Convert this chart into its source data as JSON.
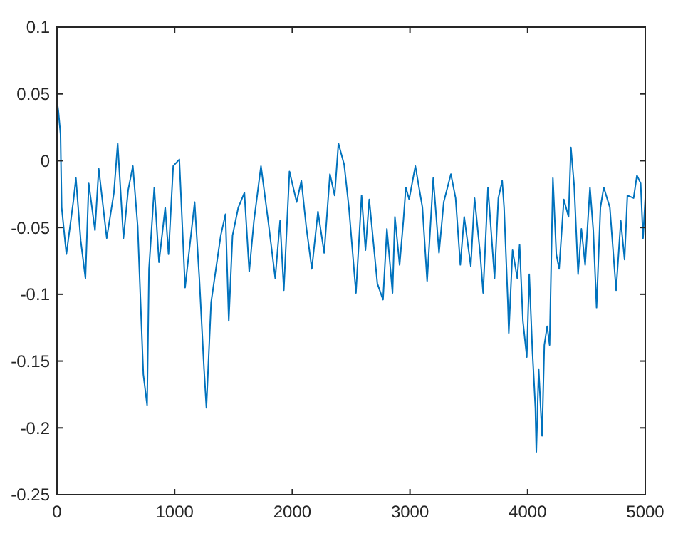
{
  "chart_data": {
    "type": "line",
    "xlim": [
      0,
      5000
    ],
    "xticks": [
      0,
      1000,
      2000,
      3000,
      4000,
      5000
    ],
    "ylim": [
      -0.25,
      0.1
    ],
    "yticks": [
      -0.25,
      -0.2,
      -0.15,
      -0.1,
      -0.05,
      0,
      0.05,
      0.1
    ],
    "grid": false,
    "marker": "none",
    "line_style": "solid",
    "series": [
      {
        "color": "#0072bd",
        "x": [
          0,
          12,
          30,
          40,
          80,
          141,
          161,
          202,
          242,
          270,
          323,
          355,
          423,
          484,
          516,
          565,
          605,
          645,
          686,
          734,
          766,
          782,
          827,
          867,
          920,
          948,
          988,
          1040,
          1089,
          1170,
          1210,
          1250,
          1270,
          1310,
          1351,
          1392,
          1432,
          1460,
          1492,
          1541,
          1593,
          1634,
          1674,
          1734,
          1795,
          1855,
          1896,
          1928,
          1976,
          2037,
          2077,
          2118,
          2166,
          2218,
          2271,
          2320,
          2360,
          2392,
          2441,
          2481,
          2541,
          2589,
          2622,
          2654,
          2723,
          2771,
          2804,
          2852,
          2872,
          2912,
          2945,
          2965,
          2993,
          3046,
          3106,
          3146,
          3198,
          3247,
          3287,
          3348,
          3388,
          3428,
          3461,
          3517,
          3549,
          3597,
          3622,
          3663,
          3719,
          3751,
          3784,
          3800,
          3832,
          3840,
          3872,
          3912,
          3932,
          3960,
          3993,
          4014,
          4041,
          4066,
          4074,
          4094,
          4123,
          4142,
          4166,
          4187,
          4215,
          4244,
          4268,
          4308,
          4348,
          4368,
          4396,
          4429,
          4457,
          4489,
          4530,
          4558,
          4586,
          4619,
          4647,
          4699,
          4752,
          4792,
          4824,
          4848,
          4901,
          4929,
          4961,
          4981,
          5000
        ],
        "values": [
          0.045,
          0.037,
          0.02,
          -0.035,
          -0.07,
          -0.029,
          -0.013,
          -0.06,
          -0.088,
          -0.017,
          -0.052,
          -0.006,
          -0.058,
          -0.024,
          0.013,
          -0.058,
          -0.022,
          -0.004,
          -0.049,
          -0.16,
          -0.183,
          -0.081,
          -0.02,
          -0.076,
          -0.035,
          -0.07,
          -0.004,
          0.001,
          -0.095,
          -0.031,
          -0.088,
          -0.156,
          -0.185,
          -0.106,
          -0.081,
          -0.056,
          -0.04,
          -0.12,
          -0.056,
          -0.035,
          -0.024,
          -0.083,
          -0.045,
          -0.004,
          -0.045,
          -0.088,
          -0.045,
          -0.097,
          -0.008,
          -0.031,
          -0.015,
          -0.049,
          -0.081,
          -0.038,
          -0.069,
          -0.01,
          -0.026,
          0.013,
          -0.003,
          -0.035,
          -0.099,
          -0.026,
          -0.067,
          -0.029,
          -0.092,
          -0.104,
          -0.051,
          -0.099,
          -0.042,
          -0.078,
          -0.044,
          -0.02,
          -0.029,
          -0.004,
          -0.035,
          -0.09,
          -0.013,
          -0.069,
          -0.031,
          -0.01,
          -0.028,
          -0.078,
          -0.042,
          -0.079,
          -0.028,
          -0.07,
          -0.099,
          -0.02,
          -0.088,
          -0.028,
          -0.015,
          -0.035,
          -0.106,
          -0.129,
          -0.067,
          -0.088,
          -0.063,
          -0.12,
          -0.147,
          -0.085,
          -0.143,
          -0.185,
          -0.218,
          -0.156,
          -0.206,
          -0.138,
          -0.124,
          -0.138,
          -0.013,
          -0.07,
          -0.081,
          -0.029,
          -0.042,
          0.01,
          -0.019,
          -0.085,
          -0.051,
          -0.078,
          -0.02,
          -0.052,
          -0.11,
          -0.035,
          -0.02,
          -0.035,
          -0.097,
          -0.045,
          -0.074,
          -0.026,
          -0.028,
          -0.011,
          -0.017,
          -0.058,
          -0.028
        ]
      }
    ]
  }
}
